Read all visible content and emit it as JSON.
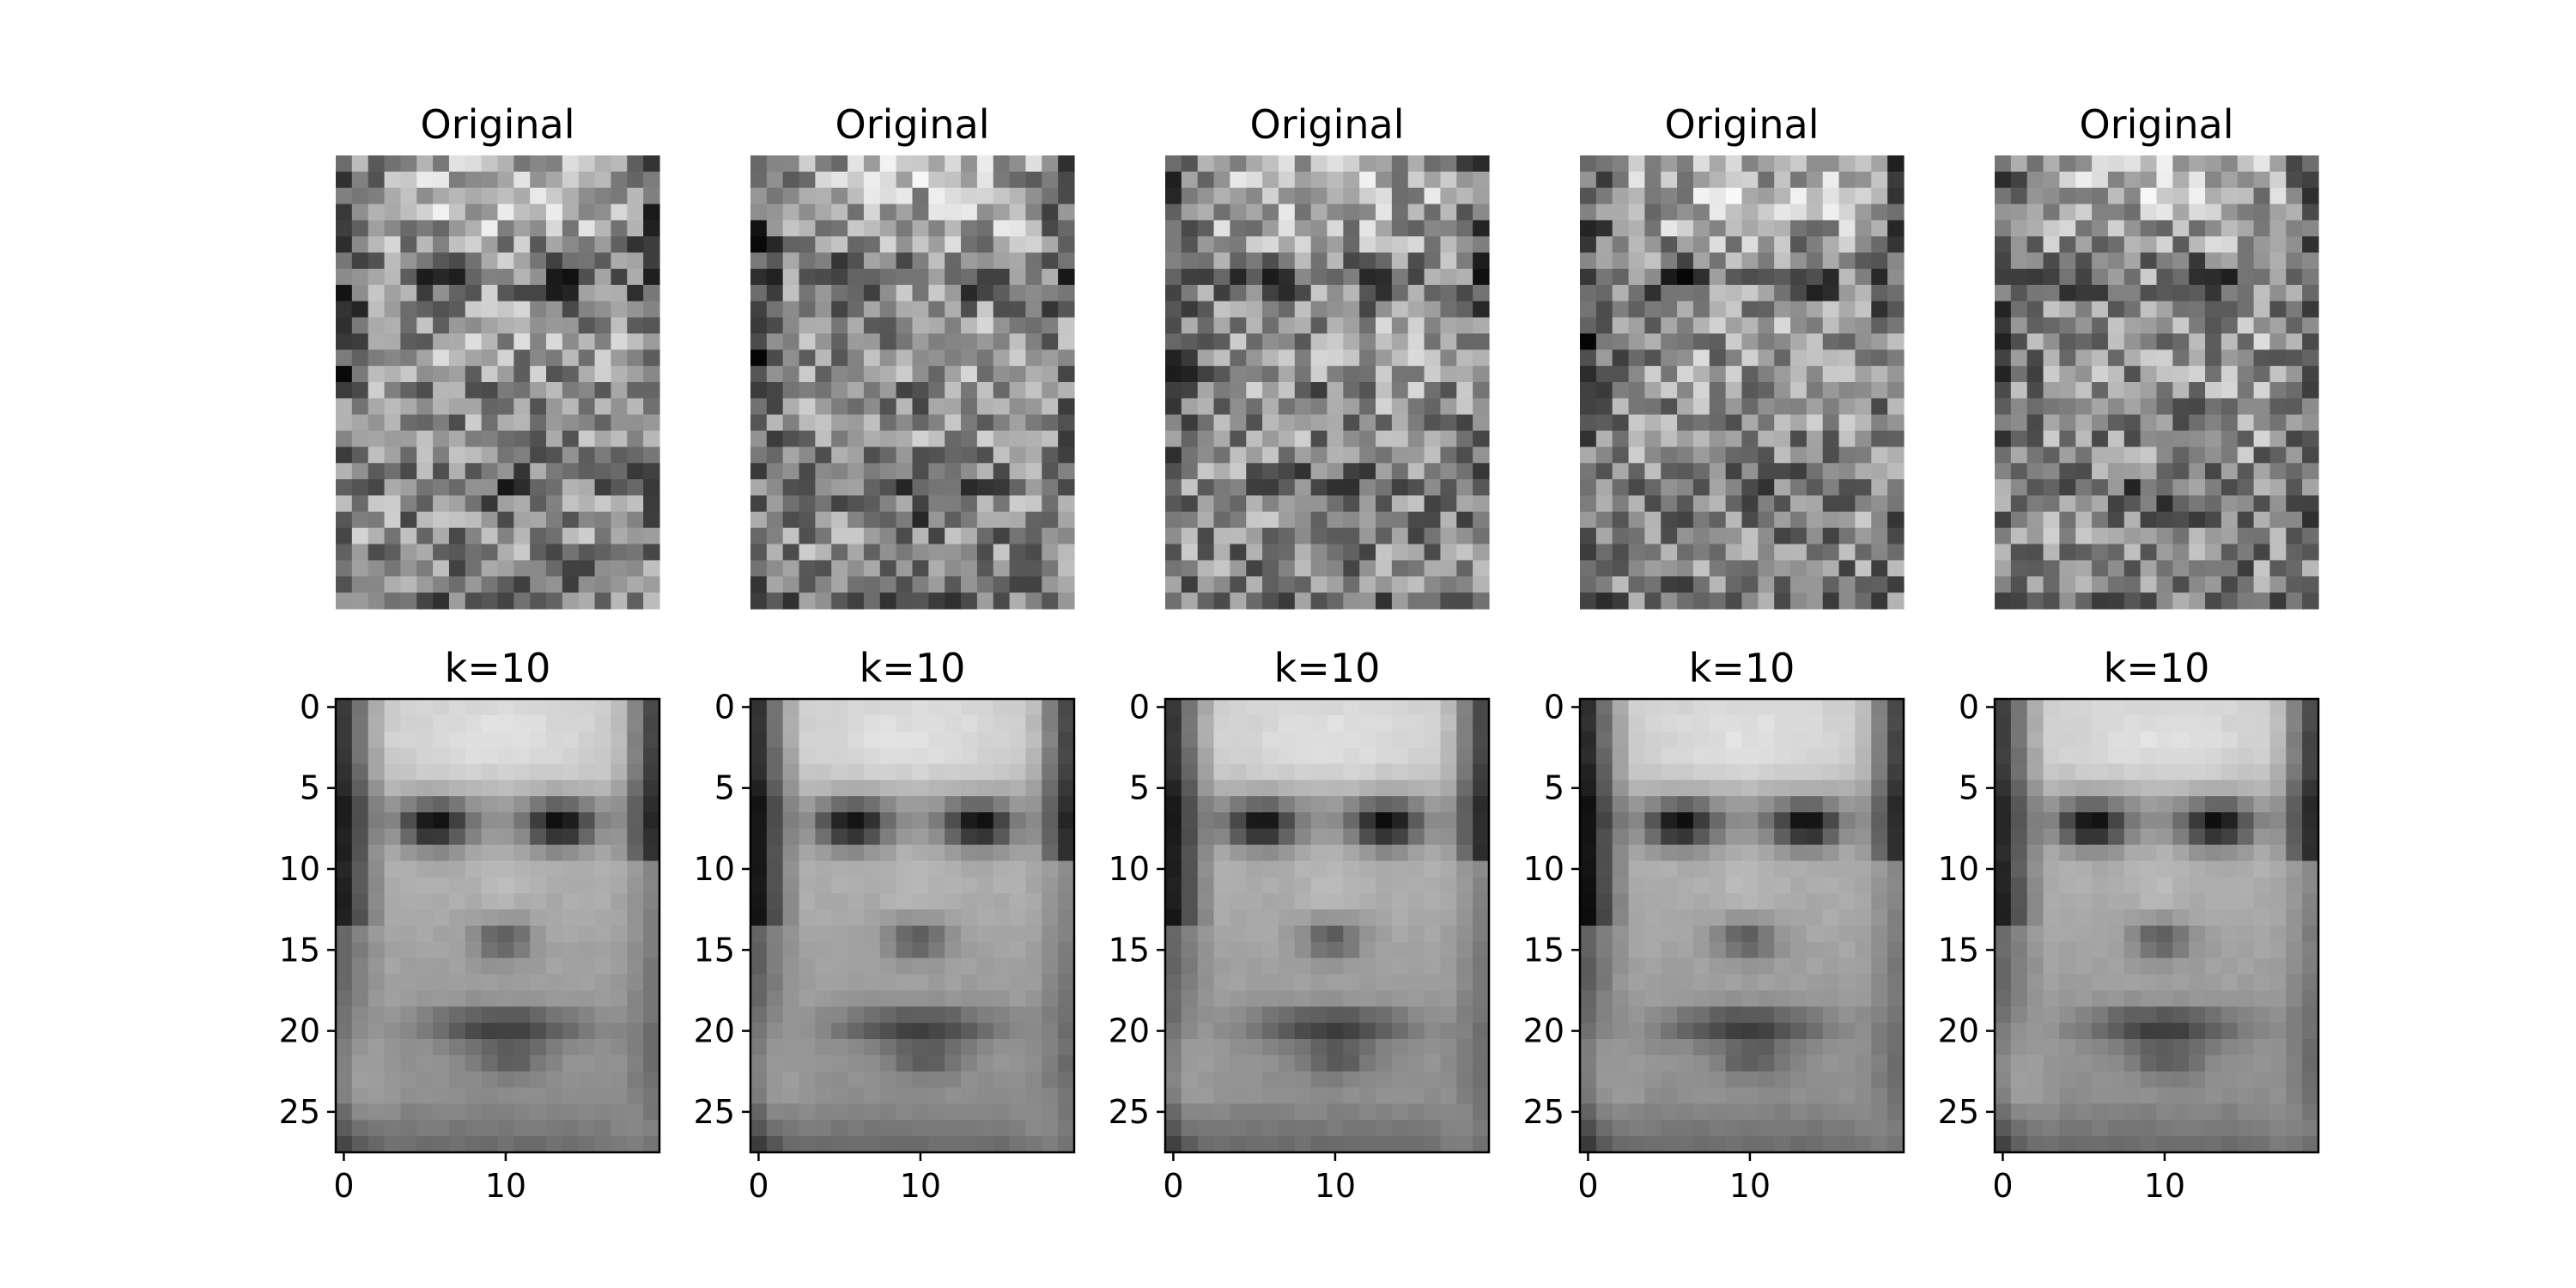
{
  "chart_data": {
    "type": "image-grid",
    "colormap": "gray",
    "image_shape": [
      28,
      20
    ],
    "rows": [
      {
        "panel_title": "Original",
        "axes_visible": false,
        "panels": 5
      },
      {
        "panel_title": "k=10",
        "axes_visible": true,
        "panels": 5,
        "x_ticks": [
          0,
          10
        ],
        "y_ticks": [
          0,
          5,
          10,
          15,
          20,
          25
        ],
        "xlim": [
          -0.5,
          19.5
        ],
        "ylim": [
          27.5,
          -0.5
        ]
      }
    ]
  }
}
